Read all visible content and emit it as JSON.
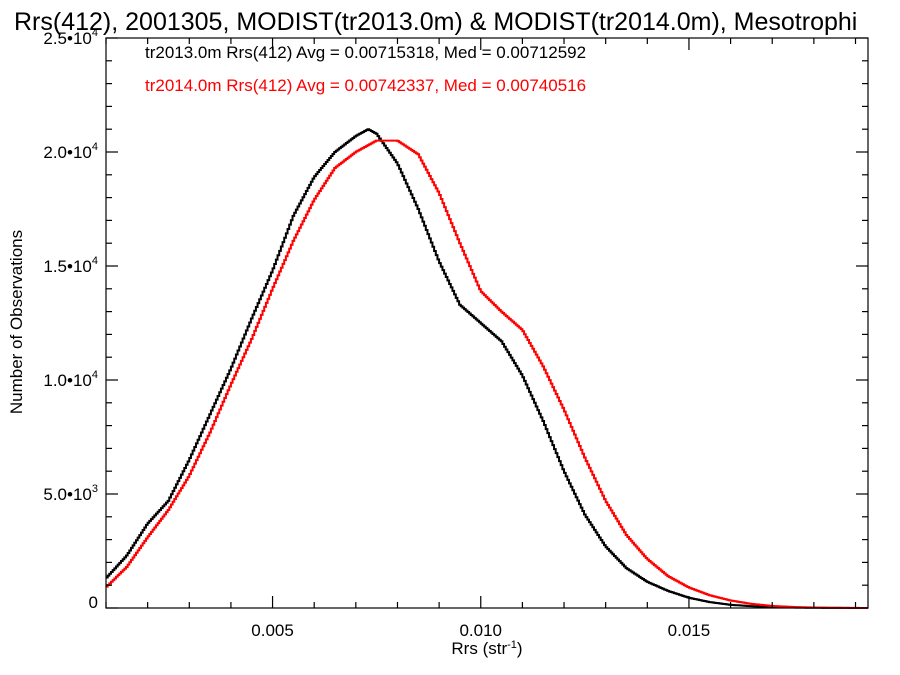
{
  "chart_data": {
    "type": "line",
    "title": "Rrs(412), 2001305, MODIST(tr2013.0m) & MODIST(tr2014.0m), Mesotrophi",
    "xlabel_base": "Rrs (str",
    "xlabel_exp": "-1",
    "xlabel_close": ")",
    "ylabel": "Number of Observations",
    "xlim": [
      0.001,
      0.0193
    ],
    "ylim": [
      0,
      25000
    ],
    "x_ticks": [
      {
        "value": 0.005,
        "label": "0.005"
      },
      {
        "value": 0.01,
        "label": "0.010"
      },
      {
        "value": 0.015,
        "label": "0.015"
      }
    ],
    "y_ticks": [
      {
        "value": 0,
        "mant": "0",
        "exp": ""
      },
      {
        "value": 5000,
        "mant": "5.0•10",
        "exp": "3"
      },
      {
        "value": 10000,
        "mant": "1.0•10",
        "exp": "4"
      },
      {
        "value": 15000,
        "mant": "1.5•10",
        "exp": "4"
      },
      {
        "value": 20000,
        "mant": "2.0•10",
        "exp": "4"
      },
      {
        "value": 25000,
        "mant": "2.5•10",
        "exp": "4"
      }
    ],
    "annotations": [
      {
        "text": "tr2013.0m Rrs(412) Avg = 0.00715318, Med = 0.00712592",
        "color": "#000000"
      },
      {
        "text": "tr2014.0m Rrs(412) Avg = 0.00742337, Med = 0.00740516",
        "color": "#ff0000"
      }
    ],
    "series": [
      {
        "color": "#000000",
        "x": [
          0.001,
          0.0015,
          0.002,
          0.0025,
          0.003,
          0.0035,
          0.004,
          0.0045,
          0.005,
          0.0055,
          0.006,
          0.0065,
          0.007,
          0.0073,
          0.0075,
          0.008,
          0.0085,
          0.009,
          0.0095,
          0.01,
          0.0105,
          0.011,
          0.0115,
          0.012,
          0.0125,
          0.013,
          0.0135,
          0.014,
          0.0145,
          0.015,
          0.0155,
          0.016,
          0.0165,
          0.017,
          0.0175,
          0.018,
          0.0185,
          0.0193
        ],
        "y": [
          1300,
          2300,
          3700,
          4700,
          6500,
          8500,
          10500,
          12700,
          14800,
          17200,
          18900,
          20000,
          20700,
          21000,
          20800,
          19500,
          17500,
          15200,
          13300,
          12500,
          11700,
          10200,
          8200,
          6000,
          4100,
          2700,
          1750,
          1150,
          750,
          450,
          260,
          140,
          80,
          40,
          20,
          10,
          5,
          0
        ]
      },
      {
        "color": "#ff0000",
        "x": [
          0.001,
          0.0015,
          0.002,
          0.0025,
          0.003,
          0.0035,
          0.004,
          0.0045,
          0.005,
          0.0055,
          0.006,
          0.0065,
          0.007,
          0.0075,
          0.008,
          0.0085,
          0.009,
          0.0095,
          0.01,
          0.0105,
          0.011,
          0.0115,
          0.012,
          0.0125,
          0.013,
          0.0135,
          0.014,
          0.0145,
          0.015,
          0.0155,
          0.016,
          0.0165,
          0.017,
          0.0175,
          0.018,
          0.0185,
          0.0193
        ],
        "y": [
          900,
          1800,
          3100,
          4300,
          5800,
          7700,
          9800,
          11800,
          14000,
          16100,
          17900,
          19300,
          20000,
          20500,
          20500,
          19900,
          18200,
          16000,
          13900,
          13000,
          12200,
          10600,
          8700,
          6600,
          4700,
          3200,
          2150,
          1400,
          900,
          560,
          330,
          180,
          90,
          45,
          20,
          10,
          0
        ]
      }
    ]
  }
}
